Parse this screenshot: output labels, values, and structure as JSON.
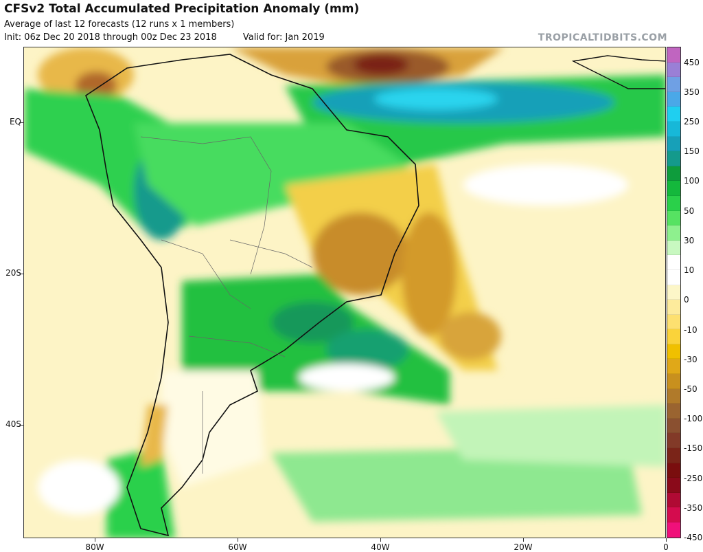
{
  "header": {
    "title": "CFSv2 Total Accumulated Precipitation Anomaly (mm)",
    "subtitle": "Average of last 12 forecasts (12 runs x 1 members)",
    "init": "Init: 06z Dec 20 2018 through 00z Dec 23 2018",
    "valid": "Valid for: Jan 2019",
    "watermark": "TROPICALTIDBITS.COM"
  },
  "map": {
    "lat_labels": [
      {
        "text": "EQ",
        "lat": 0
      },
      {
        "text": "20S",
        "lat": -20
      },
      {
        "text": "40S",
        "lat": -40
      }
    ],
    "lon_labels": [
      {
        "text": "80W",
        "lon": -80
      },
      {
        "text": "60W",
        "lon": -60
      },
      {
        "text": "40W",
        "lon": -40
      },
      {
        "text": "20W",
        "lon": -20
      },
      {
        "text": "0",
        "lon": 0
      }
    ],
    "extent": {
      "lon_min": -90,
      "lon_max": 0,
      "lat_min": -55,
      "lat_max": 10
    }
  },
  "colorbar": {
    "labels": [
      "450",
      "350",
      "250",
      "150",
      "100",
      "50",
      "30",
      "10",
      "0",
      "-10",
      "-30",
      "-50",
      "-100",
      "-150",
      "-250",
      "-350",
      "-450"
    ],
    "colors": [
      "#c065c0",
      "#9a7fd6",
      "#6fa0e4",
      "#4aa8e8",
      "#1fcff0",
      "#17b8d8",
      "#17a0b8",
      "#149a8c",
      "#0e9c3c",
      "#14b83c",
      "#2ad04a",
      "#56e262",
      "#8ef08e",
      "#c8f8c0",
      "#ffffff",
      "#ffffff",
      "#fcf6c8",
      "#fdeb9c",
      "#fde070",
      "#fad33a",
      "#f0c000",
      "#e0a818",
      "#c8901e",
      "#b07a2a",
      "#9a6430",
      "#8a5030",
      "#823a28",
      "#7a2418",
      "#7a0e0e",
      "#8a0a1a",
      "#b00a34",
      "#d40c4e",
      "#f0107a"
    ]
  }
}
